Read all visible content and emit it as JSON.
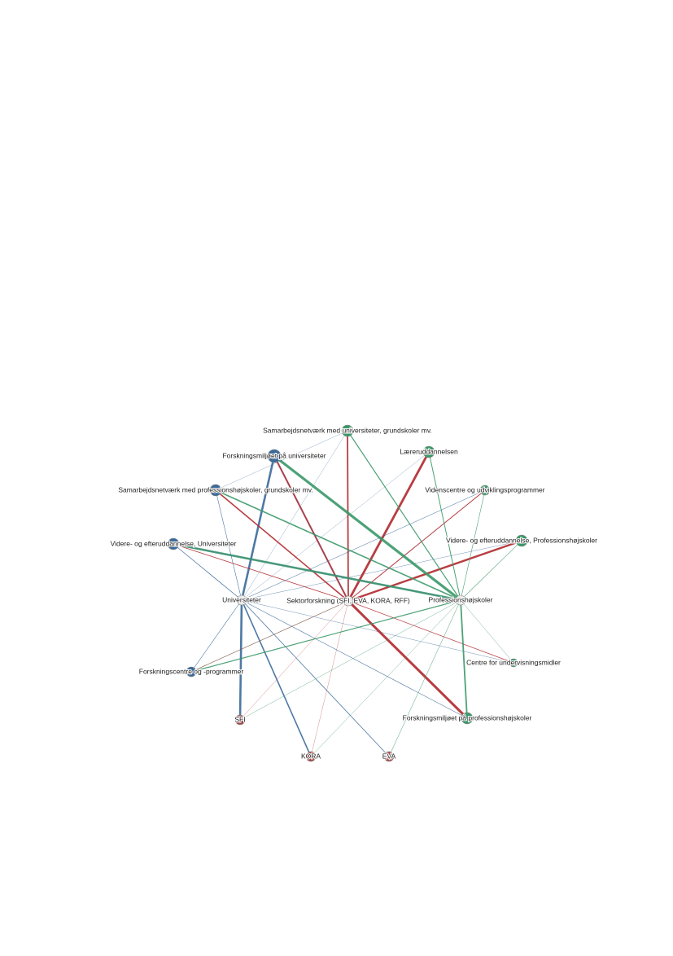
{
  "nodes": [
    {
      "label": "Samarbejdsnetværk med universiteter, grundskoler mv."
    },
    {
      "label": "Forskningsmiljøet på universiteter"
    },
    {
      "label": "Læreruddannelsen"
    },
    {
      "label": "Samarbejdsnetværk med professionshøjskoler, grundskoler mv."
    },
    {
      "label": "Videnscentre og udviklingsprogrammer"
    },
    {
      "label": "Videre- og efteruddannelse, Universiteter"
    },
    {
      "label": "Videre- og efteruddannelse, Professionshøjskoler"
    },
    {
      "label": "Universiteter"
    },
    {
      "label": "Sektorforskning (SFI, EVA, KORA, RFF)"
    },
    {
      "label": "Professionshøjskoler"
    },
    {
      "label": "Forskningscentre og -programmer"
    },
    {
      "label": "Centre for undervisningsmidler"
    },
    {
      "label": "Forskningsmiljøet på professionshøjskoler"
    },
    {
      "label": "SFI"
    },
    {
      "label": "KORA"
    },
    {
      "label": "EVA"
    }
  ]
}
